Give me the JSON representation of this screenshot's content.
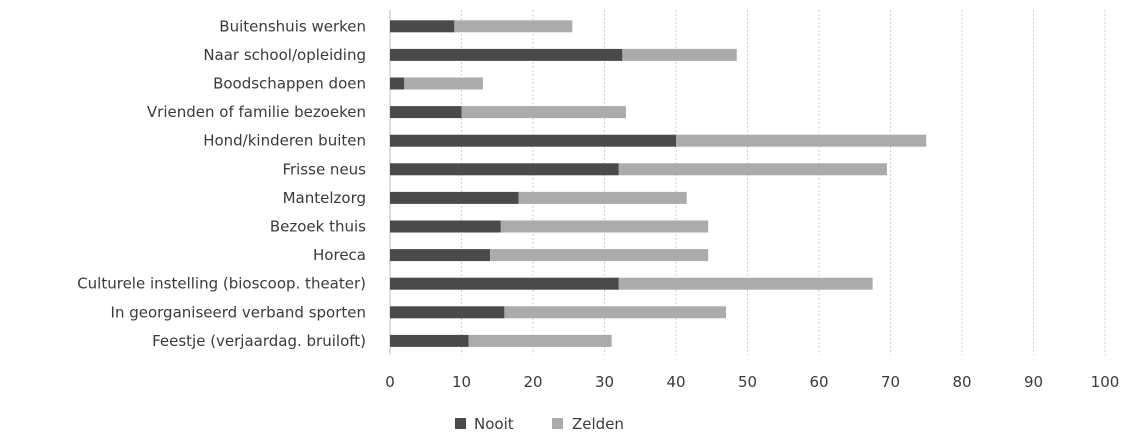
{
  "chart_data": {
    "type": "bar",
    "orientation": "horizontal",
    "stacked": true,
    "title": "",
    "xlabel": "",
    "ylabel": "",
    "xlim": [
      0,
      100
    ],
    "x_ticks": [
      "0",
      "10",
      "20",
      "30",
      "40",
      "50",
      "60",
      "70",
      "80",
      "90",
      "100"
    ],
    "grid": "vertical dashed",
    "legend_position": "bottom",
    "categories": [
      "Buitenshuis werken",
      "Naar school/opleiding",
      "Boodschappen doen",
      "Vrienden of familie bezoeken",
      "Hond/kinderen buiten",
      "Frisse neus",
      "Mantelzorg",
      "Bezoek thuis",
      "Horeca",
      "Culturele instelling (bioscoop. theater)",
      "In georganiseerd verband sporten",
      "Feestje (verjaardag. bruiloft)"
    ],
    "series": [
      {
        "name": "Nooit",
        "color": "#4a4a4a",
        "values": [
          9,
          32.5,
          2,
          10,
          40,
          32,
          18,
          15.5,
          14,
          32,
          16,
          11
        ]
      },
      {
        "name": "Zelden",
        "color": "#ababab",
        "values": [
          16.5,
          16,
          11,
          23,
          35,
          37.5,
          23.5,
          29,
          30.5,
          35.5,
          31,
          20
        ]
      }
    ]
  }
}
